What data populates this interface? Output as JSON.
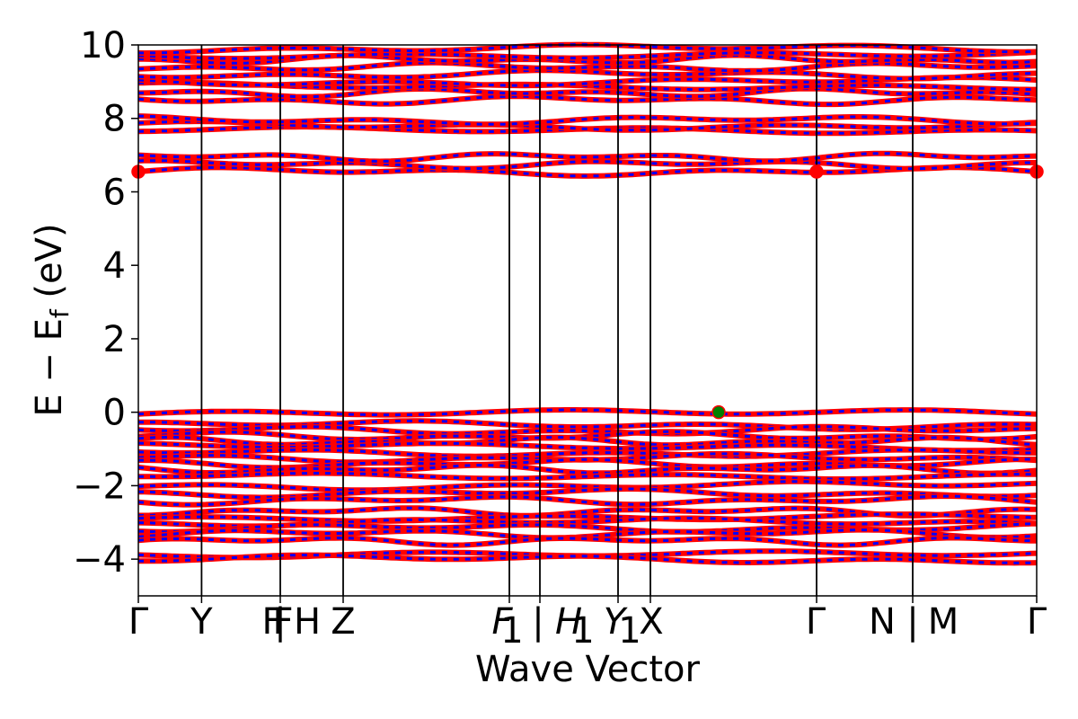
{
  "chart_data": {
    "type": "line",
    "title": "",
    "xlabel": "Wave Vector",
    "ylabel": "E − E",
    "ylabel_sub": "f",
    "ylabel_suffix": " (eV)",
    "ylim": [
      -5,
      10
    ],
    "yticks": [
      {
        "value": -4,
        "label": "−4"
      },
      {
        "value": -2,
        "label": "−2"
      },
      {
        "value": 0,
        "label": "0"
      },
      {
        "value": 2,
        "label": "2"
      },
      {
        "value": 4,
        "label": "4"
      },
      {
        "value": 6,
        "label": "6"
      },
      {
        "value": 8,
        "label": "8"
      },
      {
        "value": 10,
        "label": "10"
      }
    ],
    "kpoint_labels": [
      {
        "text": "Γ",
        "k": 0.0
      },
      {
        "text": "Y",
        "k": 0.0704
      },
      {
        "text": "F",
        "k": 0.149
      },
      {
        "text": "F",
        "k": 0.161
      },
      {
        "text": "|",
        "k": 0.158
      },
      {
        "text": "H",
        "k": 0.188
      },
      {
        "text": "Z",
        "k": 0.228
      },
      {
        "text": "F",
        "k": 0.405
      },
      {
        "text": "1",
        "k": 0.416,
        "sub": true
      },
      {
        "text": "|",
        "k": 0.445
      },
      {
        "text": "H",
        "k": 0.479
      },
      {
        "text": "1",
        "k": 0.495,
        "sub": true
      },
      {
        "text": "Y",
        "k": 0.53
      },
      {
        "text": "1",
        "k": 0.547,
        "sub": true
      },
      {
        "text": "X",
        "k": 0.571
      },
      {
        "text": "Γ",
        "k": 0.754
      },
      {
        "text": "N",
        "k": 0.828
      },
      {
        "text": "|",
        "k": 0.862
      },
      {
        "text": "M",
        "k": 0.896
      },
      {
        "text": "Γ",
        "k": 1.0
      }
    ],
    "high_symmetry_lines": [
      0.0704,
      0.158,
      0.228,
      0.413,
      0.447,
      0.534,
      0.57,
      0.755,
      0.862
    ],
    "series_styles": [
      {
        "role": "spin-up",
        "color": "#ff0000",
        "style": "solid"
      },
      {
        "role": "spin-down",
        "color": "#0000ff",
        "style": "dashed"
      }
    ],
    "valence_band_energies": [
      -0.05,
      -0.35,
      -0.5,
      -0.65,
      -0.8,
      -0.95,
      -1.1,
      -1.25,
      -1.4,
      -1.55,
      -1.7,
      -2.0,
      -2.2,
      -2.4,
      -2.7,
      -2.85,
      -3.0,
      -3.15,
      -3.3,
      -3.5,
      -3.9,
      -4.0
    ],
    "conduction_band_energies": [
      6.55,
      6.75,
      6.95,
      7.65,
      7.8,
      7.95,
      8.5,
      8.7,
      8.9,
      9.0,
      9.2,
      9.4,
      9.6,
      9.75,
      9.9
    ],
    "markers": [
      {
        "name": "cbm",
        "k": 0.0,
        "E": 6.55,
        "color": "#ff0000"
      },
      {
        "name": "cbm",
        "k": 0.755,
        "E": 6.55,
        "color": "#ff0000"
      },
      {
        "name": "cbm",
        "k": 1.0,
        "E": 6.55,
        "color": "#ff0000"
      },
      {
        "name": "vbm",
        "k": 0.646,
        "E": 0.0,
        "color": "#008000"
      }
    ],
    "grid": false
  }
}
